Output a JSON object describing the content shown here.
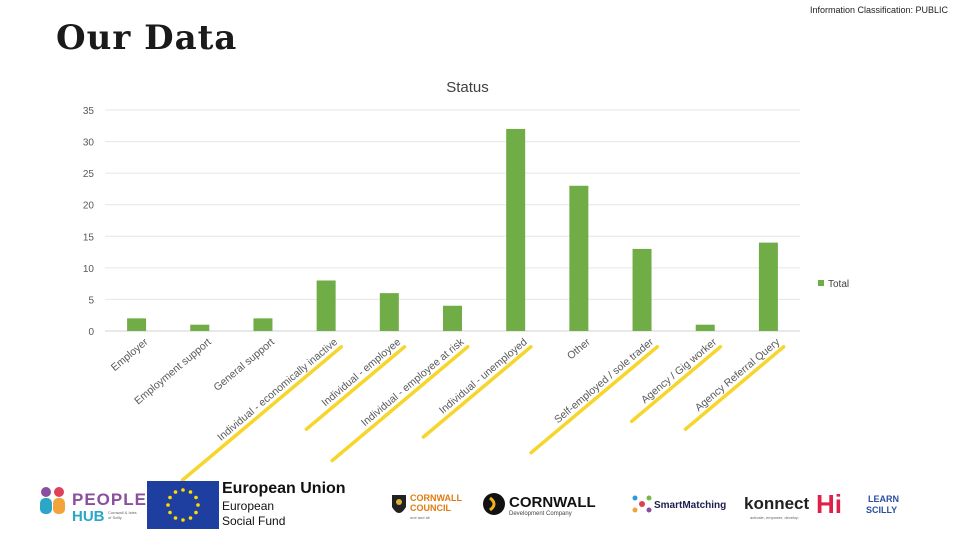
{
  "header": {
    "title": "Our Data",
    "classification": "Information Classification: PUBLIC"
  },
  "chart_data": {
    "type": "bar",
    "title": "Status",
    "categories": [
      "Employer",
      "Employment support",
      "General support",
      "Individual - economically inactive",
      "Individual - employee",
      "Individual - employee at risk",
      "Individual - unemployed",
      "Other",
      "Self-employed / sole trader",
      "Agency / Gig worker",
      "Agency Referral Query"
    ],
    "series": [
      {
        "name": "Total",
        "values": [
          2,
          1,
          2,
          8,
          6,
          4,
          32,
          23,
          13,
          1,
          14
        ],
        "color": "#70ad47"
      }
    ],
    "highlighted_categories": [
      "Individual - economically inactive",
      "Individual - employee",
      "Individual - employee at risk",
      "Individual - unemployed",
      "Self-employed / sole trader",
      "Agency / Gig worker",
      "Agency Referral Query"
    ],
    "highlight_color": "#f7d52a",
    "ylim": [
      0,
      35
    ],
    "yticks": [
      0,
      5,
      10,
      15,
      20,
      25,
      30,
      35
    ],
    "xlabel": "",
    "ylabel": "",
    "grid": true,
    "legend": "right"
  },
  "logos": {
    "people_hub": {
      "line1": "PEOPLE",
      "line2": "HUB",
      "small": "Cornwall & Isles of Scilly"
    },
    "eu": {
      "title": "European Union",
      "line1": "European",
      "line2": "Social Fund"
    },
    "cornwall_council": {
      "line1": "CORNWALL",
      "line2": "COUNCIL",
      "small": "one and all"
    },
    "cornwall_dev": {
      "title": "CORNWALL",
      "sub": "Development Company"
    },
    "smartmatching": {
      "text": "SmartMatching"
    },
    "konnect": {
      "text": "konnect",
      "small": "activate, empower, develop"
    },
    "hi": {
      "text": "Hi"
    },
    "learn_scilly": {
      "line1": "LEARN",
      "line2": "SCILLY"
    }
  }
}
